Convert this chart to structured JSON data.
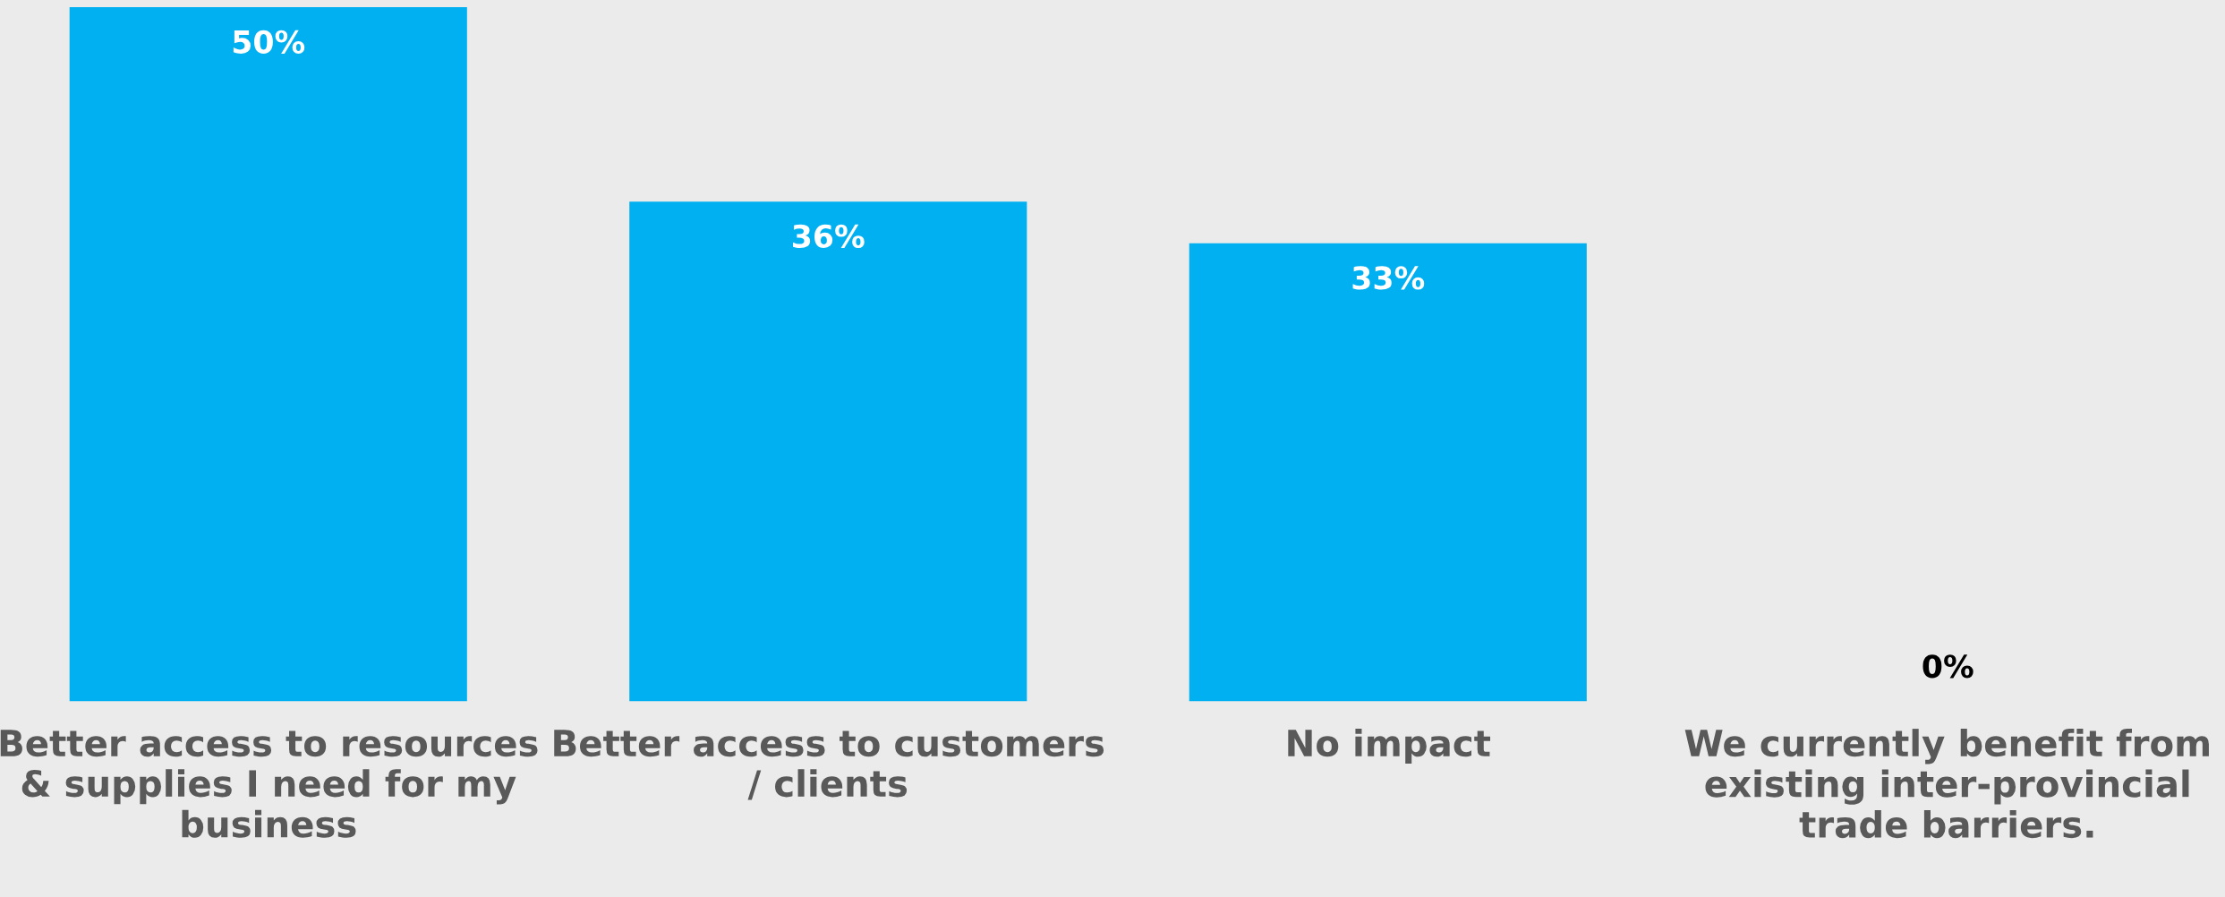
{
  "chart_data": {
    "type": "bar",
    "categories": [
      "Better access to resources\n& supplies I need for my\nbusiness",
      "Better access to customers\n/ clients",
      "No impact",
      "We currently benefit from\nexisting inter-provincial\ntrade barriers."
    ],
    "values": [
      50,
      36,
      33,
      0
    ],
    "value_labels": [
      "50%",
      "36%",
      "33%",
      "0%"
    ],
    "color": "#00b0f0",
    "grid": false,
    "legend": false,
    "tick_labels": "x"
  }
}
